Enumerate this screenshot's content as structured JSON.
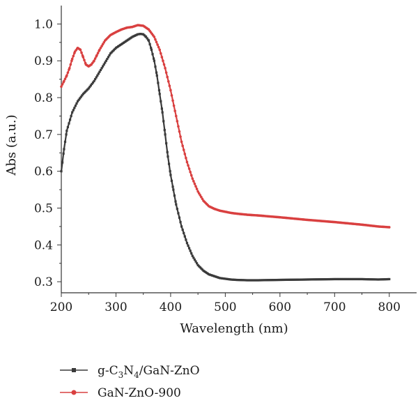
{
  "chart_data": {
    "type": "line",
    "title": "",
    "xlabel": "Wavelength (nm)",
    "ylabel": "Abs (a.u.)",
    "xlim": [
      200,
      850
    ],
    "ylim": [
      0.27,
      1.05
    ],
    "xticks": [
      200,
      300,
      400,
      500,
      600,
      700,
      800
    ],
    "yticks": [
      0.3,
      0.4,
      0.5,
      0.6,
      0.7,
      0.8,
      0.9,
      1.0
    ],
    "grid": false,
    "legend": "bottom-left",
    "series": [
      {
        "name": "g-C3N4/GaN-ZnO",
        "name_parts": {
          "pre": "g-C",
          "sub1": "3",
          "mid": "N",
          "sub2": "4",
          "post": "/GaN-ZnO"
        },
        "color": "#3a3a3a",
        "marker": "square",
        "x": [
          200,
          205,
          210,
          220,
          230,
          240,
          250,
          260,
          270,
          280,
          290,
          300,
          310,
          320,
          330,
          340,
          345,
          350,
          355,
          360,
          365,
          370,
          375,
          380,
          385,
          390,
          395,
          400,
          405,
          410,
          420,
          430,
          440,
          450,
          460,
          470,
          480,
          490,
          500,
          510,
          520,
          540,
          560,
          600,
          650,
          700,
          750,
          780,
          800
        ],
        "y": [
          0.6,
          0.66,
          0.71,
          0.76,
          0.79,
          0.81,
          0.825,
          0.845,
          0.87,
          0.895,
          0.92,
          0.935,
          0.945,
          0.955,
          0.965,
          0.972,
          0.973,
          0.972,
          0.965,
          0.955,
          0.93,
          0.9,
          0.86,
          0.81,
          0.76,
          0.7,
          0.64,
          0.59,
          0.55,
          0.51,
          0.45,
          0.405,
          0.37,
          0.345,
          0.33,
          0.32,
          0.315,
          0.31,
          0.308,
          0.306,
          0.305,
          0.304,
          0.304,
          0.305,
          0.306,
          0.307,
          0.307,
          0.306,
          0.307
        ]
      },
      {
        "name": "GaN-ZnO-900",
        "color": "#d94040",
        "marker": "circle",
        "x": [
          200,
          205,
          210,
          215,
          220,
          225,
          230,
          235,
          240,
          245,
          250,
          255,
          260,
          265,
          270,
          280,
          290,
          300,
          310,
          320,
          330,
          340,
          350,
          360,
          370,
          380,
          390,
          400,
          410,
          420,
          430,
          440,
          450,
          460,
          470,
          480,
          490,
          500,
          510,
          520,
          540,
          560,
          600,
          650,
          700,
          750,
          780,
          800
        ],
        "y": [
          0.83,
          0.845,
          0.86,
          0.88,
          0.905,
          0.925,
          0.935,
          0.93,
          0.91,
          0.89,
          0.885,
          0.89,
          0.9,
          0.915,
          0.93,
          0.955,
          0.97,
          0.978,
          0.985,
          0.99,
          0.992,
          0.997,
          0.995,
          0.985,
          0.965,
          0.93,
          0.88,
          0.82,
          0.75,
          0.68,
          0.625,
          0.58,
          0.545,
          0.52,
          0.505,
          0.498,
          0.493,
          0.49,
          0.487,
          0.485,
          0.482,
          0.48,
          0.475,
          0.468,
          0.462,
          0.455,
          0.45,
          0.448
        ]
      }
    ]
  }
}
